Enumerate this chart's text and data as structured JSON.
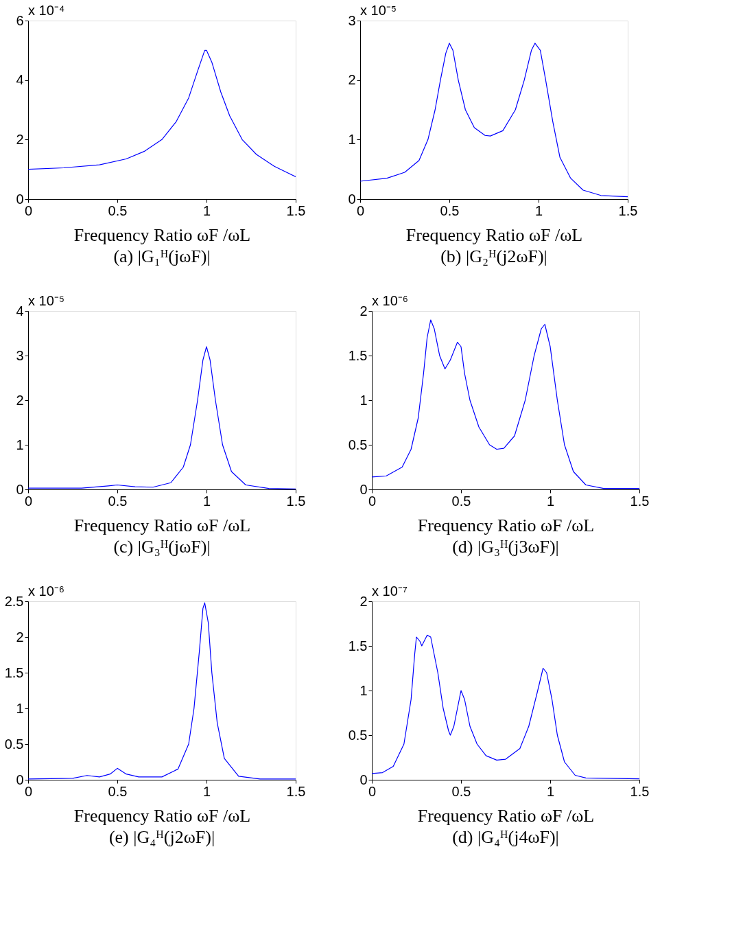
{
  "chart_data": [
    {
      "type": "line",
      "title": "(a)  |G₁ᴴ(jωF)|",
      "xlabel": "Frequency Ratio ωF /ωL",
      "annotations": [
        "x 10⁻⁴"
      ],
      "xlim": [
        0,
        1.5
      ],
      "xticks": [
        0,
        0.5,
        1,
        1.5
      ],
      "ylim": [
        0,
        6
      ],
      "yticks": [
        0,
        2,
        4,
        6
      ],
      "grid": false,
      "x": [
        0,
        0.2,
        0.4,
        0.55,
        0.65,
        0.75,
        0.83,
        0.9,
        0.95,
        0.99,
        1.0,
        1.03,
        1.08,
        1.13,
        1.2,
        1.28,
        1.38,
        1.5
      ],
      "series": [
        {
          "color": "#0000ff",
          "values": [
            1.0,
            1.05,
            1.15,
            1.35,
            1.6,
            2.0,
            2.6,
            3.4,
            4.3,
            5.0,
            5.0,
            4.6,
            3.6,
            2.8,
            2.0,
            1.5,
            1.1,
            0.75
          ]
        }
      ]
    },
    {
      "type": "line",
      "title": "(b) |G₂ᴴ(j2ωF)|",
      "xlabel": "Frequency Ratio ωF /ωL",
      "annotations": [
        "x 10⁻⁵"
      ],
      "xlim": [
        0,
        1.5
      ],
      "xticks": [
        0,
        0.5,
        1,
        1.5
      ],
      "ylim": [
        0,
        3
      ],
      "yticks": [
        0,
        1,
        2,
        3
      ],
      "grid": false,
      "x": [
        0,
        0.15,
        0.25,
        0.33,
        0.38,
        0.42,
        0.45,
        0.48,
        0.5,
        0.52,
        0.55,
        0.59,
        0.64,
        0.7,
        0.73,
        0.8,
        0.87,
        0.92,
        0.96,
        0.98,
        1.01,
        1.04,
        1.08,
        1.12,
        1.18,
        1.25,
        1.35,
        1.5
      ],
      "series": [
        {
          "color": "#0000ff",
          "values": [
            0.3,
            0.35,
            0.45,
            0.65,
            1.0,
            1.5,
            2.0,
            2.45,
            2.62,
            2.5,
            2.0,
            1.5,
            1.2,
            1.07,
            1.06,
            1.15,
            1.5,
            2.0,
            2.5,
            2.62,
            2.5,
            2.0,
            1.3,
            0.7,
            0.35,
            0.15,
            0.06,
            0.04
          ]
        }
      ]
    },
    {
      "type": "line",
      "title": "(c)  |G₃ᴴ(jωF)|",
      "xlabel": "Frequency Ratio ωF /ωL",
      "annotations": [
        "x 10⁻⁵"
      ],
      "xlim": [
        0,
        1.5
      ],
      "xticks": [
        0,
        0.5,
        1,
        1.5
      ],
      "ylim": [
        0,
        4
      ],
      "yticks": [
        0,
        1,
        2,
        3,
        4
      ],
      "grid": false,
      "x": [
        0,
        0.3,
        0.45,
        0.5,
        0.6,
        0.7,
        0.8,
        0.87,
        0.91,
        0.95,
        0.98,
        1.0,
        1.02,
        1.05,
        1.09,
        1.14,
        1.22,
        1.35,
        1.5
      ],
      "series": [
        {
          "color": "#0000ff",
          "values": [
            0.03,
            0.03,
            0.08,
            0.1,
            0.06,
            0.05,
            0.15,
            0.5,
            1.0,
            2.0,
            2.9,
            3.2,
            2.9,
            2.0,
            1.0,
            0.4,
            0.1,
            0.02,
            0.01
          ]
        }
      ]
    },
    {
      "type": "line",
      "title": "(d) |G₃ᴴ(j3ωF)|",
      "xlabel": "Frequency Ratio ωF /ωL",
      "annotations": [
        "x 10⁻⁶"
      ],
      "xlim": [
        0,
        1.5
      ],
      "xticks": [
        0,
        0.5,
        1,
        1.5
      ],
      "ylim": [
        0,
        2
      ],
      "yticks": [
        0,
        0.5,
        1,
        1.5,
        2
      ],
      "grid": false,
      "x": [
        0,
        0.08,
        0.17,
        0.22,
        0.26,
        0.29,
        0.31,
        0.33,
        0.35,
        0.38,
        0.41,
        0.44,
        0.48,
        0.5,
        0.52,
        0.55,
        0.6,
        0.66,
        0.7,
        0.74,
        0.8,
        0.86,
        0.91,
        0.95,
        0.97,
        1.0,
        1.04,
        1.08,
        1.13,
        1.2,
        1.3,
        1.5
      ],
      "series": [
        {
          "color": "#0000ff",
          "values": [
            0.14,
            0.15,
            0.25,
            0.45,
            0.8,
            1.3,
            1.7,
            1.9,
            1.8,
            1.5,
            1.35,
            1.45,
            1.65,
            1.6,
            1.3,
            1.0,
            0.7,
            0.5,
            0.45,
            0.46,
            0.6,
            1.0,
            1.5,
            1.8,
            1.85,
            1.6,
            1.0,
            0.5,
            0.2,
            0.05,
            0.01,
            0.01
          ]
        }
      ]
    },
    {
      "type": "line",
      "title": "(e)  |G₄ᴴ(j2ωF)|",
      "xlabel": "Frequency Ratio ωF /ωL",
      "annotations": [
        "x 10⁻⁶"
      ],
      "xlim": [
        0,
        1.5
      ],
      "xticks": [
        0,
        0.5,
        1,
        1.5
      ],
      "ylim": [
        0,
        2.5
      ],
      "yticks": [
        0,
        0.5,
        1,
        1.5,
        2,
        2.5
      ],
      "grid": false,
      "x": [
        0,
        0.25,
        0.33,
        0.4,
        0.46,
        0.5,
        0.55,
        0.62,
        0.75,
        0.84,
        0.9,
        0.93,
        0.96,
        0.98,
        0.99,
        1.01,
        1.03,
        1.06,
        1.1,
        1.18,
        1.3,
        1.5
      ],
      "series": [
        {
          "color": "#0000ff",
          "values": [
            0.01,
            0.02,
            0.06,
            0.04,
            0.08,
            0.16,
            0.08,
            0.04,
            0.04,
            0.15,
            0.5,
            1.0,
            1.8,
            2.4,
            2.48,
            2.2,
            1.5,
            0.8,
            0.3,
            0.05,
            0.01,
            0.01
          ]
        }
      ]
    },
    {
      "type": "line",
      "title": "(d) |G₄ᴴ(j4ωF)|",
      "xlabel": "Frequency Ratio ωF /ωL",
      "annotations": [
        "x 10⁻⁷"
      ],
      "xlim": [
        0,
        1.5
      ],
      "xticks": [
        0,
        0.5,
        1,
        1.5
      ],
      "ylim": [
        0,
        2
      ],
      "yticks": [
        0,
        0.5,
        1,
        1.5,
        2
      ],
      "grid": false,
      "x": [
        0,
        0.06,
        0.12,
        0.18,
        0.22,
        0.24,
        0.25,
        0.27,
        0.28,
        0.31,
        0.33,
        0.37,
        0.4,
        0.43,
        0.44,
        0.46,
        0.49,
        0.5,
        0.52,
        0.55,
        0.59,
        0.64,
        0.7,
        0.75,
        0.83,
        0.88,
        0.93,
        0.96,
        0.98,
        1.01,
        1.04,
        1.08,
        1.14,
        1.2,
        1.5
      ],
      "series": [
        {
          "color": "#0000ff",
          "values": [
            0.07,
            0.08,
            0.15,
            0.4,
            0.9,
            1.4,
            1.6,
            1.55,
            1.5,
            1.62,
            1.6,
            1.2,
            0.8,
            0.55,
            0.5,
            0.6,
            0.9,
            1.0,
            0.9,
            0.6,
            0.4,
            0.27,
            0.22,
            0.23,
            0.35,
            0.6,
            1.0,
            1.25,
            1.2,
            0.9,
            0.5,
            0.2,
            0.05,
            0.02,
            0.01
          ]
        }
      ]
    }
  ]
}
